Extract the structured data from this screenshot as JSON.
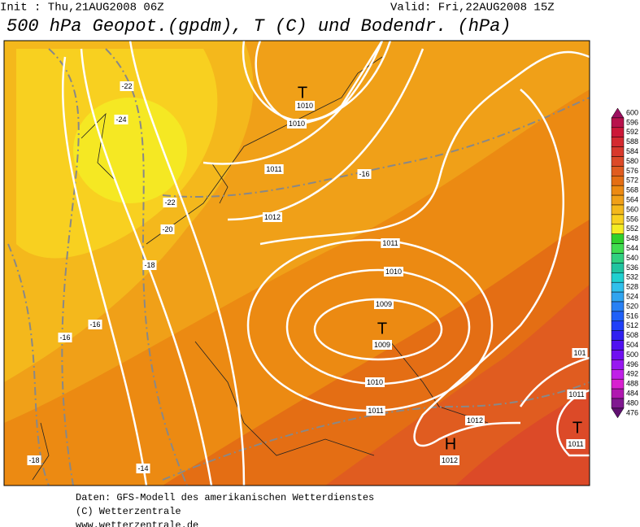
{
  "header": {
    "init": "Init : Thu,21AUG2008 06Z",
    "valid": "Valid: Fri,22AUG2008 15Z",
    "title": "500 hPa Geopot.(gpdm), T (C) und Bodendr. (hPa)"
  },
  "colorbar": [
    {
      "label": "600",
      "color": "#9c1060"
    },
    {
      "label": "596",
      "color": "#b8124c"
    },
    {
      "label": "592",
      "color": "#cc1838"
    },
    {
      "label": "588",
      "color": "#d42a30"
    },
    {
      "label": "584",
      "color": "#d8392c"
    },
    {
      "label": "580",
      "color": "#dc4a28"
    },
    {
      "label": "576",
      "color": "#e05c20"
    },
    {
      "label": "572",
      "color": "#e46e14"
    },
    {
      "label": "568",
      "color": "#ec8a12"
    },
    {
      "label": "564",
      "color": "#f0a018"
    },
    {
      "label": "560",
      "color": "#f4b81c"
    },
    {
      "label": "556",
      "color": "#f8d020"
    },
    {
      "label": "552",
      "color": "#f4ec24"
    },
    {
      "label": "548",
      "color": "#30d02c"
    },
    {
      "label": "544",
      "color": "#40dc50"
    },
    {
      "label": "540",
      "color": "#30d080"
    },
    {
      "label": "536",
      "color": "#20c4a0"
    },
    {
      "label": "532",
      "color": "#20d0d0"
    },
    {
      "label": "528",
      "color": "#30c0ec"
    },
    {
      "label": "524",
      "color": "#30a4f0"
    },
    {
      "label": "520",
      "color": "#2880f4"
    },
    {
      "label": "516",
      "color": "#2060f8"
    },
    {
      "label": "512",
      "color": "#2040f8"
    },
    {
      "label": "508",
      "color": "#3020f0"
    },
    {
      "label": "504",
      "color": "#5010f0"
    },
    {
      "label": "500",
      "color": "#7010f0"
    },
    {
      "label": "496",
      "color": "#9818f0"
    },
    {
      "label": "492",
      "color": "#c020e8"
    },
    {
      "label": "488",
      "color": "#d820d0"
    },
    {
      "label": "484",
      "color": "#b018b0"
    },
    {
      "label": "480",
      "color": "#801890"
    },
    {
      "label": "476",
      "color": "#601070"
    }
  ],
  "pressure_labels": [
    "1010",
    "1010",
    "1011",
    "1012",
    "1011",
    "1010",
    "1009",
    "1009",
    "1010",
    "1011",
    "1012",
    "1012",
    "1011",
    "1011",
    "101"
  ],
  "centers": [
    "T",
    "T",
    "H",
    "T"
  ],
  "temperature_labels": [
    "-22",
    "-24",
    "-22",
    "-20",
    "-18",
    "-16",
    "-16",
    "-16",
    "-18",
    "-14"
  ],
  "footer": [
    "Daten: GFS-Modell des amerikanischen Wetterdienstes",
    "(C) Wetterzentrale",
    "www.wetterzentrale.de"
  ]
}
